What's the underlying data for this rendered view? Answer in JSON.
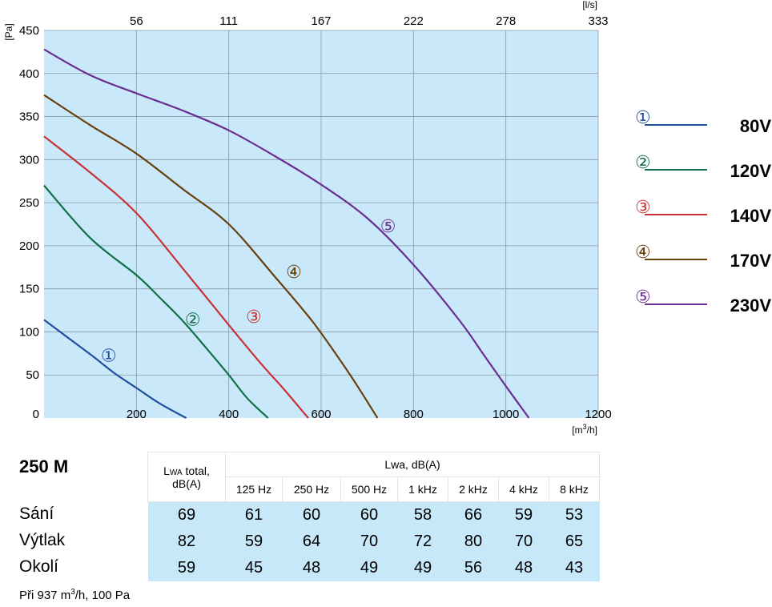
{
  "chart_data": {
    "type": "line",
    "ylabel": "[Pa]",
    "xlabel": "[m³/h]",
    "x2label": "[l/s]",
    "xlim": [
      0,
      1200
    ],
    "ylim": [
      0,
      450
    ],
    "x_ticks": [
      200,
      400,
      600,
      800,
      1000,
      1200
    ],
    "y_ticks": [
      0,
      50,
      100,
      150,
      200,
      250,
      300,
      350,
      400,
      450
    ],
    "x2_ticks": [
      {
        "at": 200,
        "label": "56"
      },
      {
        "at": 400,
        "label": "111"
      },
      {
        "at": 600,
        "label": "167"
      },
      {
        "at": 800,
        "label": "222"
      },
      {
        "at": 1000,
        "label": "278"
      },
      {
        "at": 1200,
        "label": "333"
      }
    ],
    "grid": true,
    "background": "#c9e8f9",
    "series": [
      {
        "label": "①",
        "color": "#1f4f9e",
        "x": [
          0,
          100,
          150,
          200,
          250,
          308
        ],
        "y": [
          114,
          74,
          53,
          35,
          17,
          0
        ],
        "marker_x": 140,
        "marker_y": 73
      },
      {
        "label": "②",
        "color": "#117048",
        "x": [
          0,
          100,
          200,
          250,
          300,
          350,
          400,
          440,
          485
        ],
        "y": [
          270,
          209,
          166,
          140,
          113,
          82,
          50,
          23,
          0
        ],
        "marker_x": 322,
        "marker_y": 115
      },
      {
        "label": "③",
        "color": "#c83232",
        "x": [
          0,
          100,
          200,
          300,
          400,
          470,
          520,
          572
        ],
        "y": [
          327,
          285,
          238,
          174,
          108,
          63,
          33,
          0
        ],
        "marker_x": 454,
        "marker_y": 118
      },
      {
        "label": "④",
        "color": "#6a3f0c",
        "x": [
          0,
          100,
          200,
          300,
          400,
          500,
          580,
          640,
          680,
          722
        ],
        "y": [
          375,
          340,
          307,
          266,
          225,
          164,
          113,
          68,
          36,
          0
        ],
        "marker_x": 541,
        "marker_y": 170
      },
      {
        "label": "⑤",
        "color": "#6a2e90",
        "x": [
          0,
          100,
          200,
          300,
          400,
          500,
          600,
          700,
          800,
          900,
          950,
          1000,
          1050
        ],
        "y": [
          428,
          398,
          377,
          357,
          334,
          304,
          271,
          232,
          178,
          113,
          75,
          37,
          0
        ],
        "marker_x": 745,
        "marker_y": 223
      }
    ]
  },
  "legend": [
    {
      "num": "①",
      "color": "#1f4f9e",
      "label": "80V"
    },
    {
      "num": "②",
      "color": "#117048",
      "label": "120V"
    },
    {
      "num": "③",
      "color": "#c83232",
      "label": "140V"
    },
    {
      "num": "④",
      "color": "#6a3f0c",
      "label": "170V"
    },
    {
      "num": "⑤",
      "color": "#6a2e90",
      "label": "230V"
    }
  ],
  "table": {
    "model": "250 M",
    "total_header_pre": "L",
    "total_header_sub": "WA",
    "total_header_post": " total,",
    "total_header_unit": "dB(A)",
    "band_header": "Lwa, dB(A)",
    "bands": [
      "125 Hz",
      "250 Hz",
      "500 Hz",
      "1 kHz",
      "2 kHz",
      "4 kHz",
      "8 kHz"
    ],
    "rows": [
      {
        "label": "Sání",
        "values": [
          "69",
          "61",
          "60",
          "60",
          "58",
          "66",
          "59",
          "53"
        ]
      },
      {
        "label": "Výtlak",
        "values": [
          "82",
          "59",
          "64",
          "70",
          "72",
          "80",
          "70",
          "65"
        ]
      },
      {
        "label": "Okolí",
        "values": [
          "59",
          "45",
          "48",
          "49",
          "49",
          "56",
          "48",
          "43"
        ]
      }
    ],
    "footnote_pre": "Při 937 m",
    "footnote_sup": "3",
    "footnote_post": "/h, 100 Pa"
  }
}
